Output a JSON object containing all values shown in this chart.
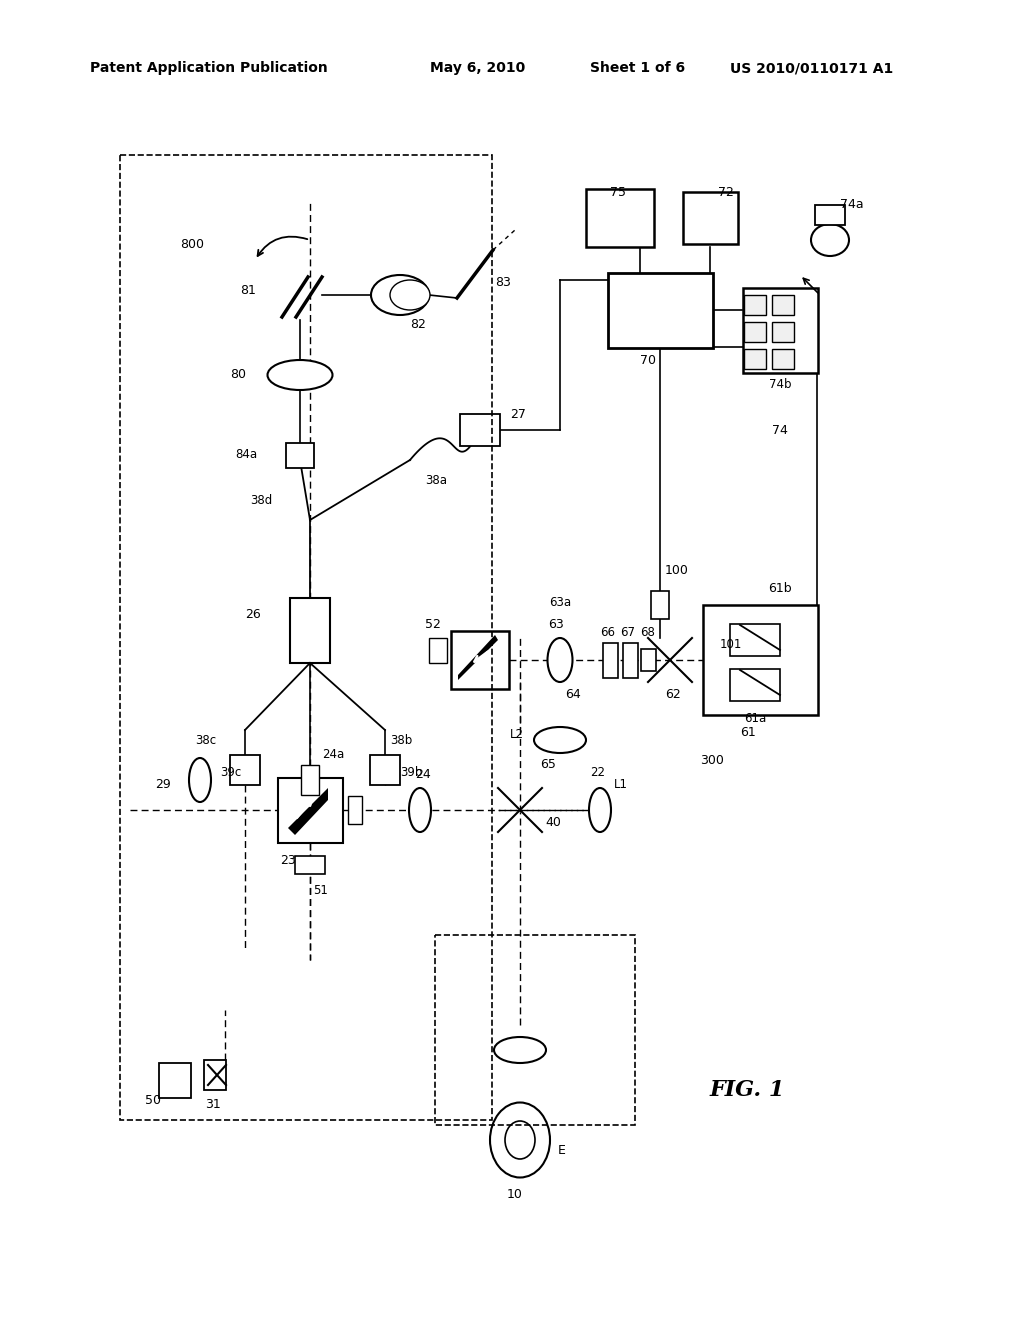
{
  "background_color": "#ffffff",
  "header_text": "Patent Application Publication",
  "header_date": "May 6, 2010",
  "header_sheet": "Sheet 1 of 6",
  "header_patent": "US 2010/0110171 A1",
  "fig_label": "FIG. 1"
}
